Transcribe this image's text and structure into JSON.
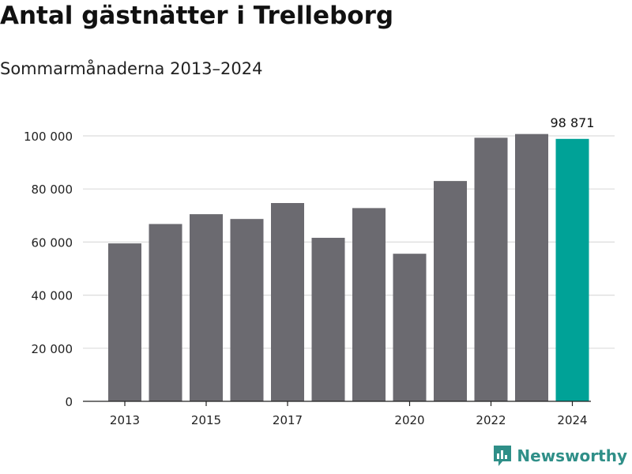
{
  "title": "Antal gästnätter i Trelleborg",
  "subtitle": "Sommarmånaderna 2013–2024",
  "chart_data": {
    "type": "bar",
    "years": [
      2013,
      2014,
      2015,
      2016,
      2017,
      2018,
      2019,
      2020,
      2021,
      2022,
      2023,
      2024
    ],
    "values": [
      59500,
      66800,
      70500,
      68700,
      74700,
      61600,
      72800,
      55600,
      83000,
      99300,
      100700,
      98871
    ],
    "x_tick_labels": [
      "2013",
      "2015",
      "2017",
      "2020",
      "2022",
      "2024"
    ],
    "y_ticks": [
      {
        "value": 0,
        "label": "0"
      },
      {
        "value": 20000,
        "label": "20 000"
      },
      {
        "value": 40000,
        "label": "40 000"
      },
      {
        "value": 60000,
        "label": "60 000"
      },
      {
        "value": 80000,
        "label": "80 000"
      },
      {
        "value": 100000,
        "label": "100 000"
      }
    ],
    "ylim": [
      0,
      100000
    ],
    "data_label": {
      "year": 2024,
      "text": "98 871"
    },
    "bar_color": "#6b6a70",
    "highlight_color": "#00a297",
    "highlight_year": 2024,
    "grid": true,
    "xlabel": "",
    "ylabel": ""
  },
  "brand": {
    "name": "Newsworthy",
    "icon": "newsworthy-logo-icon",
    "color": "#2f8f88"
  }
}
